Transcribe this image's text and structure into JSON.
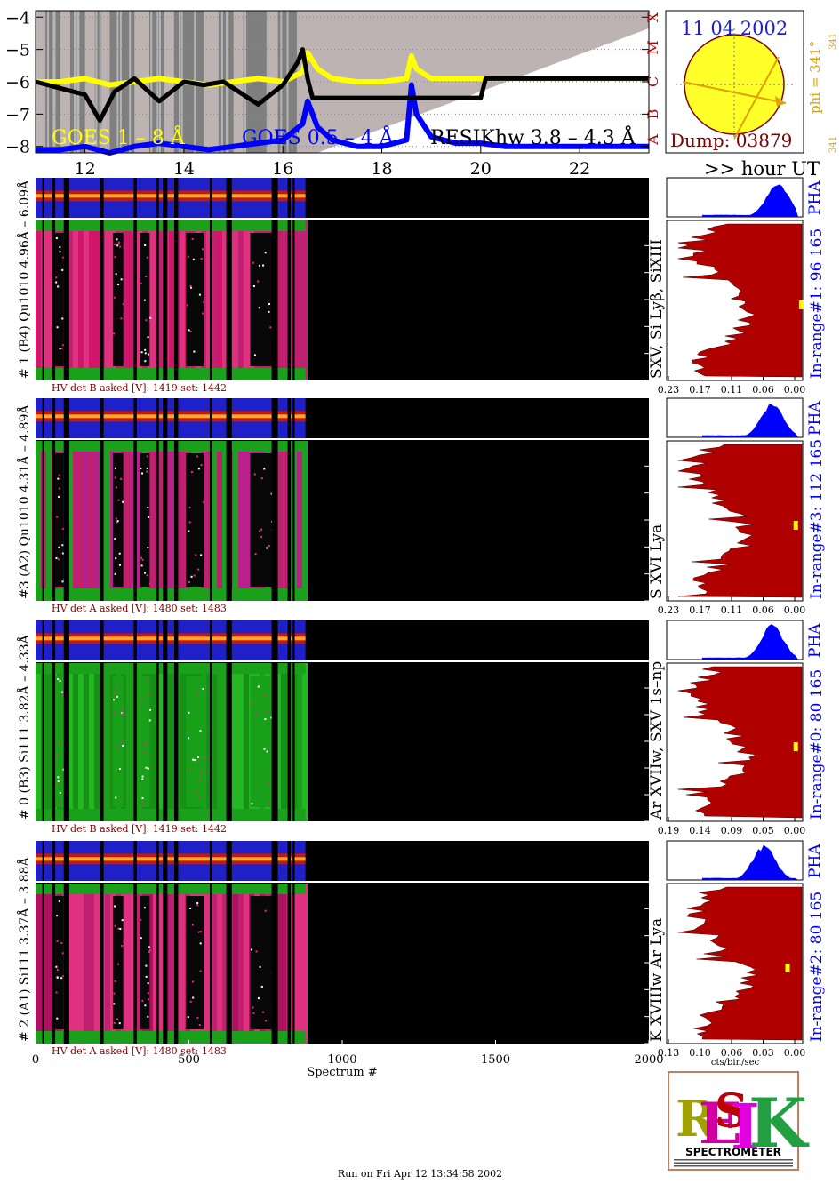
{
  "header": {
    "date": "11 04 2002",
    "dump": "Dump: 03879",
    "phi": "phi = 341°",
    "phi_small": "341",
    "phi_small2": "341",
    "hour_label": ">> hour UT"
  },
  "colors": {
    "goes_long": "#ffff00",
    "goes_short": "#0000ff",
    "resik": "#000000",
    "spectrogram_red": "#b00000",
    "pha_blue": "#0000ff",
    "date_blue": "#1f1fd0",
    "dump_maroon": "#800000",
    "phi_orange": "#e0a000",
    "class_red": "#b00000"
  },
  "legend": {
    "goes_long": "GOES 1 – 8 Å",
    "goes_short": "GOES 0.5 – 4 Å",
    "resik": "RESIKhw 3.8 – 4.3 Å"
  },
  "flare_classes": [
    "A",
    "B",
    "C",
    "M",
    "X"
  ],
  "chart_data": [
    {
      "type": "line",
      "title": "",
      "xlabel": ">> hour UT",
      "ylabel": "",
      "xlim": [
        11,
        23.4
      ],
      "ylim": [
        -8.2,
        -3.8
      ],
      "xticks": [
        12,
        14,
        16,
        18,
        20,
        22
      ],
      "yticks": [
        -8,
        -7,
        -6,
        -5,
        -4
      ],
      "series": [
        {
          "name": "GOES 1 – 8 Å",
          "x": [
            11.0,
            11.5,
            12.0,
            12.5,
            13.0,
            13.5,
            14.0,
            14.5,
            15.0,
            15.5,
            16.0,
            16.4,
            16.5,
            16.7,
            17.0,
            17.5,
            18.0,
            18.5,
            18.6,
            18.7,
            19.0,
            19.5,
            20.0,
            20.5,
            21.0,
            21.5,
            22.0,
            22.5,
            23.0,
            23.4
          ],
          "y": [
            -6.0,
            -6.0,
            -5.9,
            -6.1,
            -6.0,
            -5.9,
            -6.0,
            -6.1,
            -6.0,
            -5.9,
            -6.0,
            -5.7,
            -5.1,
            -5.6,
            -5.9,
            -6.0,
            -6.0,
            -5.9,
            -5.2,
            -5.6,
            -5.9,
            -5.9,
            -5.9,
            -5.9,
            -5.9,
            -5.9,
            -5.9,
            -5.9,
            -5.9,
            -5.9
          ]
        },
        {
          "name": "GOES 0.5 – 4 Å",
          "x": [
            11.0,
            11.5,
            12.0,
            12.5,
            13.0,
            13.5,
            14.0,
            14.5,
            15.0,
            15.5,
            16.0,
            16.4,
            16.5,
            16.7,
            17.0,
            17.5,
            18.0,
            18.5,
            18.6,
            18.7,
            19.0,
            19.5,
            20.0,
            20.5,
            21.0,
            21.5,
            22.0,
            22.5,
            23.0,
            23.4
          ],
          "y": [
            -8.1,
            -8.1,
            -8.0,
            -8.2,
            -8.0,
            -7.9,
            -8.0,
            -8.1,
            -8.0,
            -7.9,
            -7.8,
            -7.3,
            -6.6,
            -7.4,
            -7.8,
            -8.0,
            -8.0,
            -7.8,
            -6.1,
            -7.0,
            -7.7,
            -7.9,
            -7.9,
            -8.0,
            -8.0,
            -8.0,
            -8.0,
            -8.0,
            -8.0,
            -8.0
          ]
        },
        {
          "name": "RESIKhw 3.8 – 4.3 Å",
          "x": [
            11.0,
            11.5,
            12.0,
            12.3,
            12.6,
            13.0,
            13.5,
            14.0,
            14.4,
            14.8,
            15.0,
            15.5,
            16.0,
            16.3,
            16.4,
            16.5,
            16.6,
            17.0,
            18.0,
            19.0,
            20.0,
            20.1,
            21.0,
            22.0,
            23.0,
            23.4
          ],
          "y": [
            -6.0,
            -6.2,
            -6.4,
            -7.2,
            -6.3,
            -5.9,
            -6.6,
            -6.0,
            -6.1,
            -6.0,
            -6.2,
            -6.7,
            -6.1,
            -5.4,
            -5.0,
            -5.9,
            -6.5,
            -6.5,
            -6.5,
            -6.5,
            -6.5,
            -5.9,
            -5.9,
            -5.9,
            -5.9,
            -5.9
          ]
        }
      ]
    },
    {
      "type": "heatmap",
      "title": "",
      "xlabel": "Spectrum #",
      "xlim": [
        0,
        2000
      ],
      "xticks": [
        0,
        500,
        1000,
        1500,
        2000
      ],
      "panels": [
        {
          "label": "# 1 (B4) Qu1010 4.96Å – 6.09Å",
          "hv": "HV det B asked [V]:  1419 set:  1442",
          "lines": "SXV, Si Lyβ, SiXIII",
          "range": "In-range#1:   96 165",
          "pha_axis": [
            "0.23",
            "0.17",
            "0.11",
            "0.06",
            "0.00"
          ],
          "marker": 0.72
        },
        {
          "label": "#3 (A2) Qu1010  4.31Å – 4.89Å",
          "hv": "HV det A asked [V]:  1480 set:  1483",
          "lines": "S XVI Lya",
          "range": "In-range#3:   112 165",
          "pha_axis": [
            "0.23",
            "0.17",
            "0.11",
            "0.06",
            "0.00"
          ],
          "marker": 0.68
        },
        {
          "label": "# 0 (B3) Si111  3.82Å – 4.33Å",
          "hv": "HV det B asked [V]:  1419 set:  1442",
          "lines": "Ar XVIIw,  SXV 1s–np",
          "range": "In-range#0:   80 165",
          "pha_axis": [
            "0.19",
            "0.14",
            "0.09",
            "0.05",
            "0.00"
          ],
          "marker": 0.68
        },
        {
          "label": "# 2 (A1) Si111  3.37Å – 3.88Å",
          "hv": "HV det A asked [V]:  1480 set:  1483",
          "lines": "K XVIIIw  Ar Lya",
          "range": "In-range#2:   80 165",
          "pha_axis": [
            "0.13",
            "0.10",
            "0.06",
            "0.03",
            "0.00"
          ],
          "pha_xlabel": "cts/bin/sec",
          "marker": 0.62
        }
      ]
    }
  ],
  "pha_label": "PHA",
  "logo": {
    "text": "SPECTROMETER",
    "letters": "RESIK"
  },
  "footer": "Run on Fri Apr 12 13:34:58 2002"
}
